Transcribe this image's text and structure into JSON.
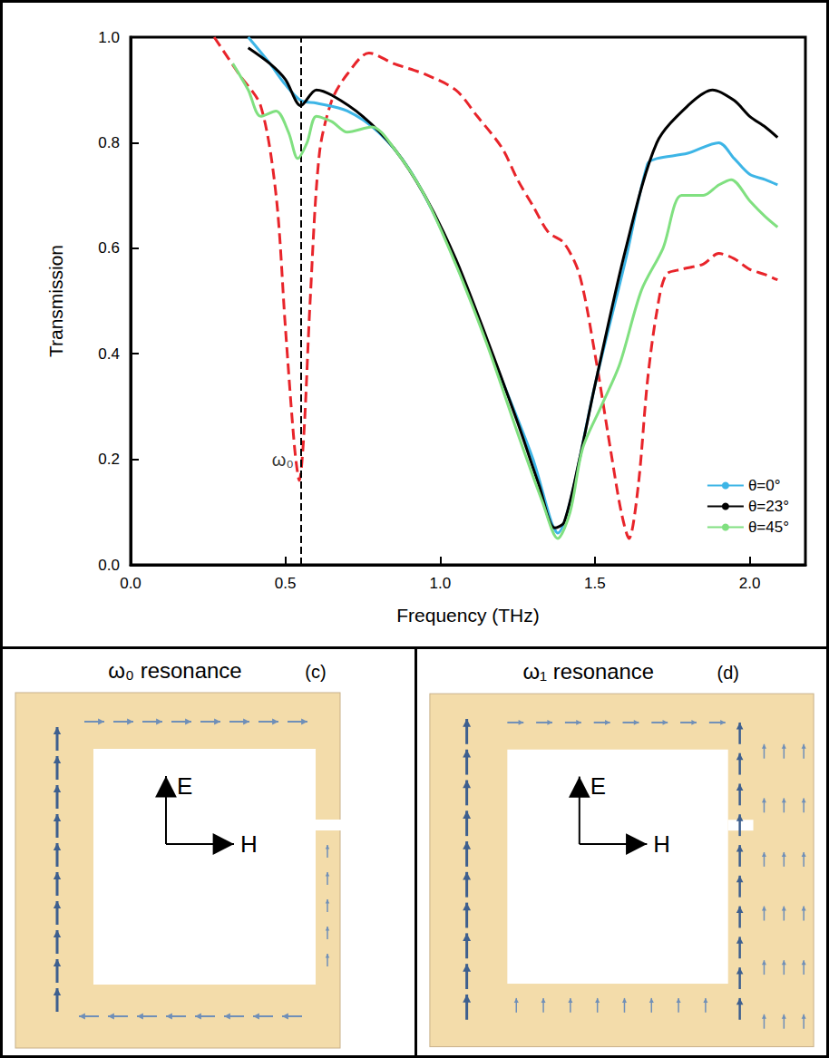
{
  "chart_data": {
    "type": "line",
    "xlabel": "Frequency (THz)",
    "ylabel": "Transmission",
    "xlim": [
      0,
      2.18
    ],
    "xticks": [
      {
        "value": 0,
        "label": "0.0"
      },
      0.5,
      {
        "value": 1,
        "label": "1.0"
      },
      1.5,
      {
        "value": 2,
        "label": "2.0"
      }
    ],
    "ylim": [
      0,
      1
    ],
    "yticks": [
      {
        "value": 0,
        "label": "0.0"
      },
      0.2,
      0.4,
      0.6,
      0.8,
      {
        "value": 1,
        "label": "1.0"
      }
    ],
    "grid": false,
    "legend": "bottom-right",
    "series": [
      {
        "color": "#e8242a",
        "line_style": "dashed",
        "x": [
          0.27,
          0.35,
          0.42,
          0.47,
          0.5,
          0.53,
          0.545,
          0.56,
          0.58,
          0.61,
          0.65,
          0.7,
          0.77,
          0.85,
          0.95,
          1.05,
          1.12,
          1.2,
          1.25,
          1.3,
          1.35,
          1.4,
          1.45,
          1.5,
          1.55,
          1.585,
          1.61,
          1.64,
          1.67,
          1.7,
          1.73,
          1.78,
          1.85,
          1.9,
          1.95,
          2.0,
          2.05,
          2.09
        ],
        "values": [
          1.0,
          0.93,
          0.87,
          0.7,
          0.45,
          0.22,
          0.16,
          0.25,
          0.5,
          0.78,
          0.88,
          0.93,
          0.97,
          0.95,
          0.93,
          0.9,
          0.85,
          0.79,
          0.73,
          0.68,
          0.63,
          0.61,
          0.55,
          0.4,
          0.22,
          0.1,
          0.05,
          0.15,
          0.35,
          0.48,
          0.55,
          0.56,
          0.57,
          0.59,
          0.58,
          0.56,
          0.55,
          0.54
        ]
      },
      {
        "name": "θ=0°",
        "color": "#3db5e6",
        "line_style": "solid",
        "x": [
          0.38,
          0.45,
          0.5,
          0.55,
          0.6,
          0.7,
          0.8,
          0.9,
          1.0,
          1.1,
          1.2,
          1.3,
          1.36,
          1.38,
          1.42,
          1.5,
          1.6,
          1.67,
          1.7,
          1.8,
          1.9,
          1.95,
          2.0,
          2.05,
          2.09
        ],
        "values": [
          1.0,
          0.95,
          0.91,
          0.88,
          0.875,
          0.86,
          0.82,
          0.75,
          0.64,
          0.5,
          0.35,
          0.2,
          0.08,
          0.06,
          0.12,
          0.34,
          0.58,
          0.76,
          0.77,
          0.78,
          0.8,
          0.77,
          0.74,
          0.73,
          0.72
        ]
      },
      {
        "name": "θ=23°",
        "color": "#000000",
        "line_style": "solid",
        "x": [
          0.38,
          0.45,
          0.5,
          0.55,
          0.6,
          0.65,
          0.75,
          0.85,
          0.95,
          1.05,
          1.15,
          1.25,
          1.32,
          1.37,
          1.4,
          1.45,
          1.5,
          1.6,
          1.7,
          1.8,
          1.88,
          1.95,
          2.0,
          2.05,
          2.09
        ],
        "values": [
          0.98,
          0.95,
          0.92,
          0.87,
          0.9,
          0.89,
          0.85,
          0.79,
          0.7,
          0.58,
          0.43,
          0.27,
          0.15,
          0.07,
          0.08,
          0.2,
          0.34,
          0.6,
          0.8,
          0.87,
          0.9,
          0.88,
          0.85,
          0.83,
          0.81
        ]
      },
      {
        "name": "θ=45°",
        "color": "#80e080",
        "line_style": "solid",
        "x": [
          0.33,
          0.38,
          0.42,
          0.47,
          0.51,
          0.54,
          0.57,
          0.6,
          0.65,
          0.7,
          0.78,
          0.85,
          0.95,
          1.05,
          1.15,
          1.25,
          1.33,
          1.38,
          1.42,
          1.46,
          1.52,
          1.58,
          1.65,
          1.72,
          1.78,
          1.85,
          1.9,
          1.94,
          2.0,
          2.05,
          2.09
        ],
        "values": [
          0.95,
          0.9,
          0.85,
          0.86,
          0.82,
          0.77,
          0.8,
          0.85,
          0.84,
          0.82,
          0.83,
          0.79,
          0.7,
          0.57,
          0.42,
          0.25,
          0.12,
          0.05,
          0.1,
          0.22,
          0.3,
          0.38,
          0.52,
          0.6,
          0.7,
          0.7,
          0.72,
          0.73,
          0.69,
          0.66,
          0.64
        ]
      }
    ],
    "annotations": [
      {
        "text": "ω₀",
        "x": 0.55,
        "y": 0.2,
        "line_style": "dashed"
      }
    ]
  },
  "panels": [
    {
      "title": "ω₀ resonance",
      "label": "(c)",
      "axes": [
        "E",
        "H"
      ]
    },
    {
      "title": "ω₁ resonance",
      "label": "(d)",
      "axes": [
        "E",
        "H"
      ]
    }
  ]
}
